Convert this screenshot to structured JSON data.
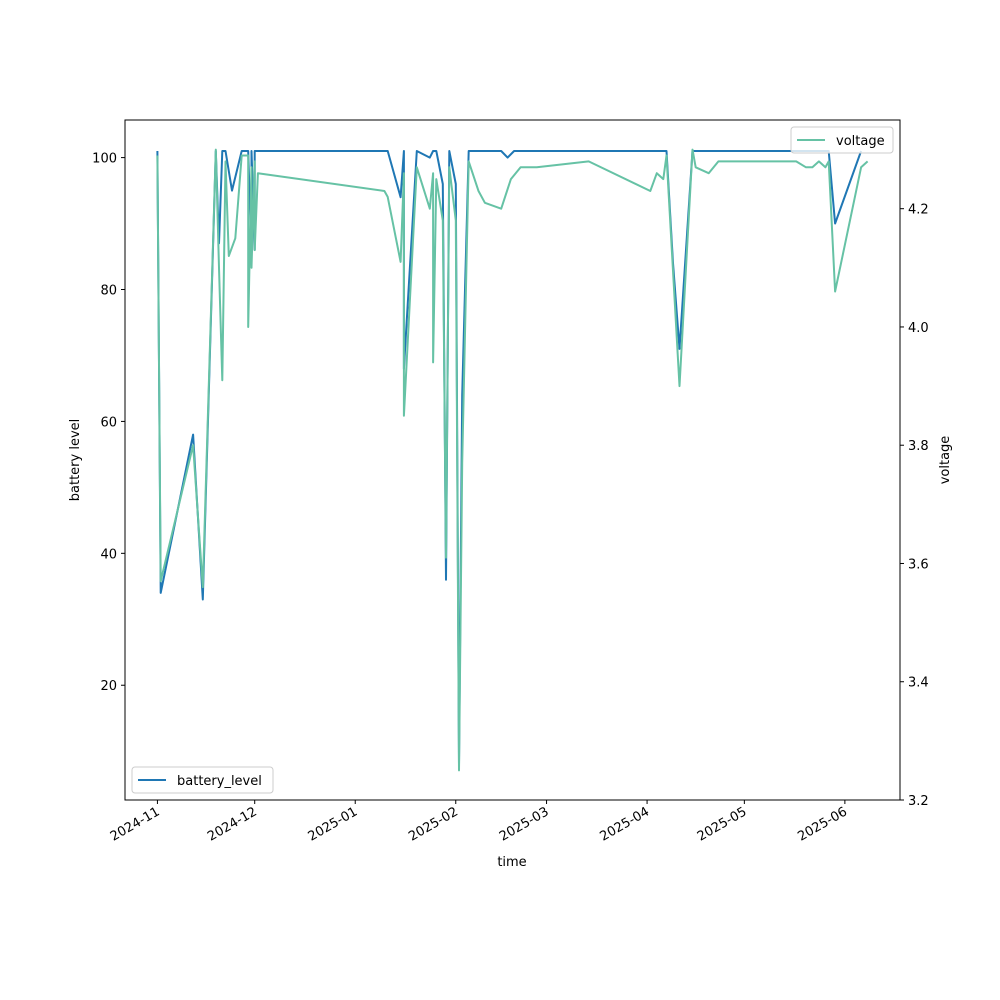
{
  "chart_data": {
    "type": "line",
    "xlabel": "time",
    "ylabel_left": "battery level",
    "ylabel_right": "voltage",
    "x_ticks": [
      "2024-11",
      "2024-12",
      "2025-01",
      "2025-02",
      "2025-03",
      "2025-04",
      "2025-05",
      "2025-06"
    ],
    "x_range": [
      "2024-10-22",
      "2025-06-18"
    ],
    "ylim_left": [
      2.6,
      105.7
    ],
    "yticks_left": [
      20,
      40,
      60,
      80,
      100
    ],
    "ylim_right": [
      3.2,
      4.35
    ],
    "yticks_right": [
      3.2,
      3.4,
      3.6,
      3.8,
      4.0,
      4.2
    ],
    "grid": false,
    "legend_left": {
      "label": "battery_level",
      "placement": "lower-left"
    },
    "legend_right": {
      "label": "voltage",
      "placement": "upper-right"
    },
    "series": [
      {
        "name": "battery_level",
        "axis": "left",
        "color": "#1f77b4",
        "points": [
          [
            "2024-11-01",
            101
          ],
          [
            "2024-11-02",
            34
          ],
          [
            "2024-11-12",
            58
          ],
          [
            "2024-11-15",
            33
          ],
          [
            "2024-11-19",
            101
          ],
          [
            "2024-11-20",
            87
          ],
          [
            "2024-11-21",
            101
          ],
          [
            "2024-11-22",
            101
          ],
          [
            "2024-11-24",
            95
          ],
          [
            "2024-11-27",
            101
          ],
          [
            "2024-11-29",
            101
          ],
          [
            "2024-11-30",
            85
          ],
          [
            "2024-11-30",
            101
          ],
          [
            "2024-12-01",
            86
          ],
          [
            "2024-12-01",
            101
          ],
          [
            "2024-12-02",
            101
          ],
          [
            "2025-01-11",
            101
          ],
          [
            "2025-01-15",
            94
          ],
          [
            "2025-01-16",
            101
          ],
          [
            "2025-01-16",
            68
          ],
          [
            "2025-01-20",
            101
          ],
          [
            "2025-01-24",
            100
          ],
          [
            "2025-01-25",
            101
          ],
          [
            "2025-01-26",
            101
          ],
          [
            "2025-01-28",
            96
          ],
          [
            "2025-01-29",
            36
          ],
          [
            "2025-01-30",
            101
          ],
          [
            "2025-02-01",
            96
          ],
          [
            "2025-02-02",
            8
          ],
          [
            "2025-02-03",
            64
          ],
          [
            "2025-02-05",
            101
          ],
          [
            "2025-02-15",
            101
          ],
          [
            "2025-02-17",
            100
          ],
          [
            "2025-02-19",
            101
          ],
          [
            "2025-04-07",
            101
          ],
          [
            "2025-04-09",
            84
          ],
          [
            "2025-04-11",
            71
          ],
          [
            "2025-04-15",
            101
          ],
          [
            "2025-05-27",
            101
          ],
          [
            "2025-05-29",
            90
          ],
          [
            "2025-06-06",
            101
          ]
        ]
      },
      {
        "name": "voltage",
        "axis": "right",
        "color": "#66c2a5",
        "points": [
          [
            "2024-11-01",
            4.29
          ],
          [
            "2024-11-02",
            3.57
          ],
          [
            "2024-11-12",
            3.8
          ],
          [
            "2024-11-15",
            3.56
          ],
          [
            "2024-11-19",
            4.3
          ],
          [
            "2024-11-20",
            4.1
          ],
          [
            "2024-11-21",
            3.91
          ],
          [
            "2024-11-22",
            4.28
          ],
          [
            "2024-11-23",
            4.12
          ],
          [
            "2024-11-25",
            4.15
          ],
          [
            "2024-11-27",
            4.29
          ],
          [
            "2024-11-29",
            4.29
          ],
          [
            "2024-11-29",
            4.0
          ],
          [
            "2024-11-30",
            4.27
          ],
          [
            "2024-11-30",
            4.1
          ],
          [
            "2024-12-01",
            4.28
          ],
          [
            "2024-12-01",
            4.13
          ],
          [
            "2024-12-02",
            4.26
          ],
          [
            "2025-01-10",
            4.23
          ],
          [
            "2025-01-11",
            4.22
          ],
          [
            "2025-01-15",
            4.11
          ],
          [
            "2025-01-16",
            4.26
          ],
          [
            "2025-01-16",
            3.85
          ],
          [
            "2025-01-20",
            4.27
          ],
          [
            "2025-01-24",
            4.2
          ],
          [
            "2025-01-25",
            4.26
          ],
          [
            "2025-01-25",
            3.94
          ],
          [
            "2025-01-26",
            4.25
          ],
          [
            "2025-01-28",
            4.18
          ],
          [
            "2025-01-29",
            3.61
          ],
          [
            "2025-01-30",
            4.27
          ],
          [
            "2025-02-01",
            4.18
          ],
          [
            "2025-02-02",
            3.25
          ],
          [
            "2025-02-03",
            3.77
          ],
          [
            "2025-02-05",
            4.28
          ],
          [
            "2025-02-08",
            4.23
          ],
          [
            "2025-02-10",
            4.21
          ],
          [
            "2025-02-15",
            4.2
          ],
          [
            "2025-02-18",
            4.25
          ],
          [
            "2025-02-21",
            4.27
          ],
          [
            "2025-02-24",
            4.27
          ],
          [
            "2025-02-26",
            4.27
          ],
          [
            "2025-03-14",
            4.28
          ],
          [
            "2025-04-02",
            4.23
          ],
          [
            "2025-04-04",
            4.26
          ],
          [
            "2025-04-06",
            4.25
          ],
          [
            "2025-04-07",
            4.29
          ],
          [
            "2025-04-11",
            3.9
          ],
          [
            "2025-04-15",
            4.3
          ],
          [
            "2025-04-16",
            4.27
          ],
          [
            "2025-04-20",
            4.26
          ],
          [
            "2025-04-23",
            4.28
          ],
          [
            "2025-04-25",
            4.28
          ],
          [
            "2025-05-17",
            4.28
          ],
          [
            "2025-05-20",
            4.27
          ],
          [
            "2025-05-22",
            4.27
          ],
          [
            "2025-05-24",
            4.28
          ],
          [
            "2025-05-26",
            4.27
          ],
          [
            "2025-05-27",
            4.28
          ],
          [
            "2025-05-29",
            4.06
          ],
          [
            "2025-06-06",
            4.27
          ],
          [
            "2025-06-08",
            4.28
          ]
        ]
      }
    ]
  }
}
